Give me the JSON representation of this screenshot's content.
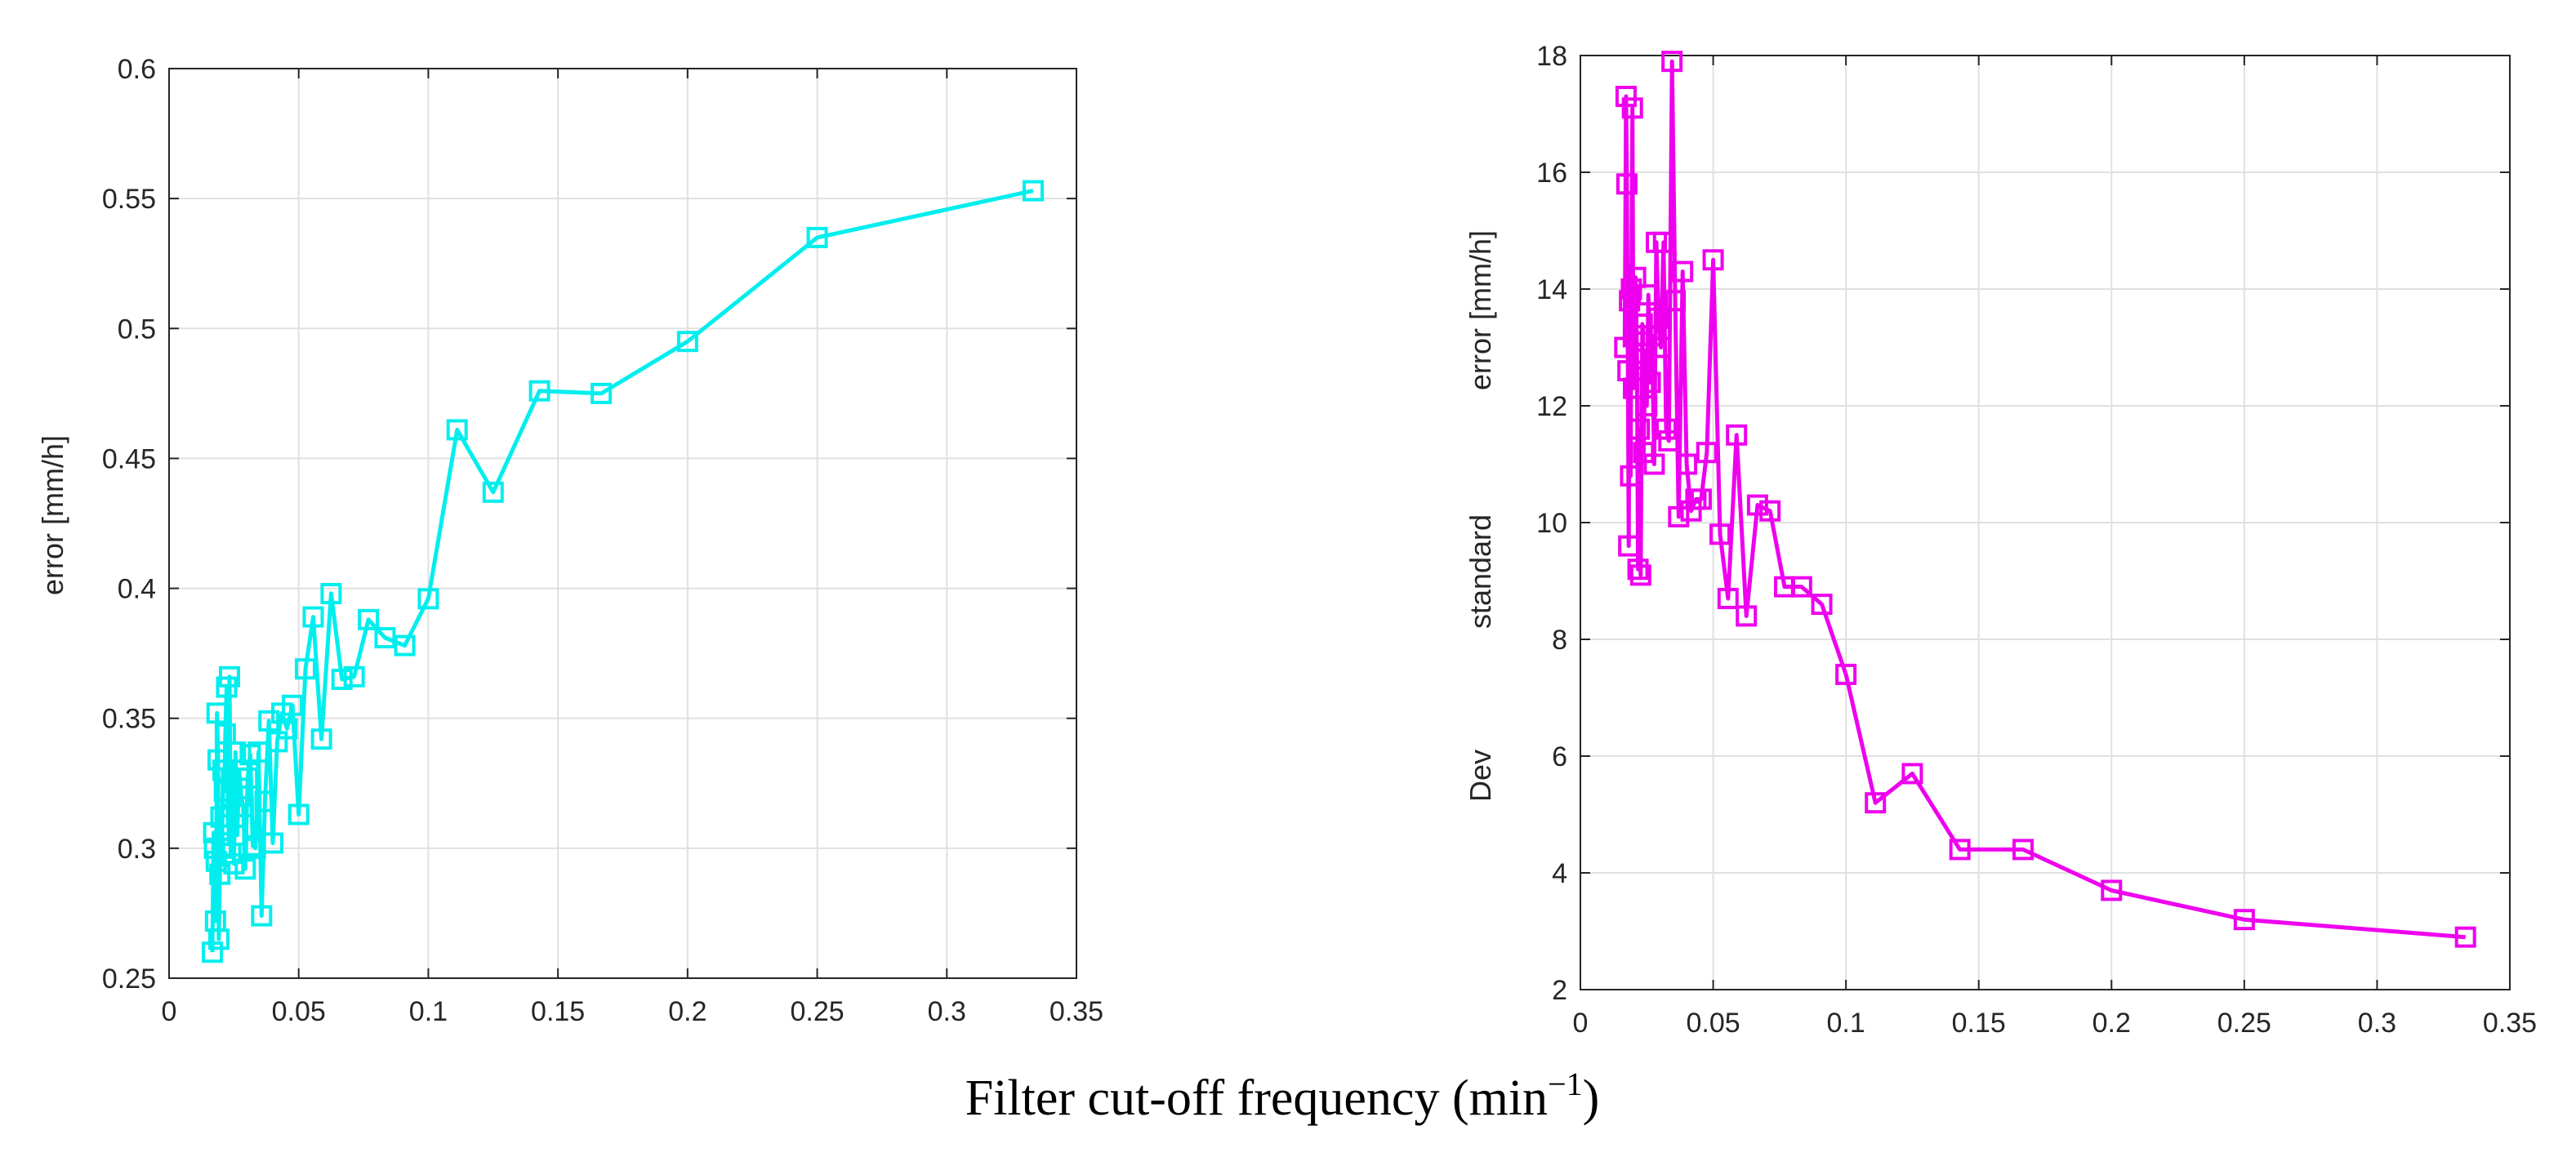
{
  "caption": {
    "text": "Filter cut-off frequency (min",
    "sup": "−1",
    "close": ")"
  },
  "chart_data": [
    {
      "type": "line",
      "marker": "square",
      "color": "#00eeee",
      "xlabel": "",
      "ylabel": "error   [mm/h]",
      "xlim": [
        0,
        0.35
      ],
      "ylim": [
        0.25,
        0.6
      ],
      "xticks": [
        "0",
        "0.05",
        "0.1",
        "0.15",
        "0.2",
        "0.25",
        "0.3",
        "0.35"
      ],
      "yticks": [
        "0.25",
        "0.3",
        "0.35",
        "0.4",
        "0.45",
        "0.5",
        "0.55",
        "0.6"
      ],
      "grid": true,
      "x": [
        0.0167,
        0.0172,
        0.0175,
        0.0179,
        0.0182,
        0.0185,
        0.0189,
        0.0192,
        0.0196,
        0.02,
        0.0204,
        0.0208,
        0.0213,
        0.0217,
        0.0222,
        0.0227,
        0.0233,
        0.0238,
        0.0244,
        0.025,
        0.0256,
        0.0263,
        0.027,
        0.0278,
        0.0286,
        0.0294,
        0.0303,
        0.0313,
        0.0323,
        0.0333,
        0.0345,
        0.0357,
        0.037,
        0.0385,
        0.04,
        0.0417,
        0.0435,
        0.0455,
        0.0476,
        0.05,
        0.0526,
        0.0556,
        0.0588,
        0.0625,
        0.0667,
        0.0714,
        0.0769,
        0.0833,
        0.0909,
        0.1,
        0.1111,
        0.125,
        0.1429,
        0.1667,
        0.2,
        0.25,
        0.3333
      ],
      "y": [
        0.26,
        0.306,
        0.3,
        0.272,
        0.295,
        0.352,
        0.334,
        0.265,
        0.29,
        0.312,
        0.3,
        0.33,
        0.322,
        0.344,
        0.362,
        0.309,
        0.366,
        0.298,
        0.32,
        0.294,
        0.337,
        0.305,
        0.33,
        0.32,
        0.316,
        0.292,
        0.327,
        0.336,
        0.301,
        0.3,
        0.337,
        0.274,
        0.318,
        0.349,
        0.302,
        0.341,
        0.352,
        0.346,
        0.355,
        0.313,
        0.369,
        0.389,
        0.342,
        0.398,
        0.365,
        0.366,
        0.388,
        0.381,
        0.378,
        0.396,
        0.461,
        0.437,
        0.476,
        0.475,
        0.495,
        0.535,
        0.553
      ]
    },
    {
      "type": "line",
      "marker": "square",
      "color": "#ee00ee",
      "xlabel": "",
      "ylabel_parts": [
        "Dev",
        "standard",
        "error   [mm/h]"
      ],
      "xlim": [
        0,
        0.35
      ],
      "ylim": [
        2,
        18
      ],
      "xticks": [
        "0",
        "0.05",
        "0.1",
        "0.15",
        "0.2",
        "0.25",
        "0.3",
        "0.35"
      ],
      "yticks": [
        "2",
        "4",
        "6",
        "8",
        "10",
        "12",
        "14",
        "16",
        "18"
      ],
      "grid": true,
      "x": [
        0.0167,
        0.0172,
        0.0175,
        0.0179,
        0.0182,
        0.0185,
        0.0189,
        0.0192,
        0.0196,
        0.02,
        0.0204,
        0.0208,
        0.0213,
        0.0217,
        0.0222,
        0.0227,
        0.0233,
        0.0238,
        0.0244,
        0.025,
        0.0256,
        0.0263,
        0.027,
        0.0278,
        0.0286,
        0.0294,
        0.0303,
        0.0313,
        0.0323,
        0.0333,
        0.0345,
        0.0357,
        0.037,
        0.0385,
        0.04,
        0.0417,
        0.0435,
        0.0455,
        0.0476,
        0.05,
        0.0526,
        0.0556,
        0.0588,
        0.0625,
        0.0667,
        0.0714,
        0.0769,
        0.0833,
        0.0909,
        0.1,
        0.1111,
        0.125,
        0.1429,
        0.1667,
        0.2,
        0.25,
        0.3333
      ],
      "y": [
        13.0,
        17.3,
        15.8,
        12.6,
        9.6,
        13.8,
        10.8,
        14.0,
        17.1,
        12.3,
        13.2,
        14.2,
        12.8,
        9.2,
        11.6,
        9.1,
        13.4,
        11.2,
        12.9,
        12.0,
        13.9,
        12.4,
        13.2,
        11.0,
        14.8,
        13.5,
        13.0,
        14.8,
        11.6,
        11.4,
        17.9,
        13.8,
        10.1,
        14.3,
        11.0,
        10.2,
        10.4,
        10.4,
        11.2,
        14.5,
        9.8,
        8.7,
        11.5,
        8.4,
        10.3,
        10.2,
        8.9,
        8.9,
        8.6,
        7.4,
        5.2,
        5.7,
        4.4,
        4.4,
        3.7,
        3.2,
        2.9
      ]
    }
  ]
}
